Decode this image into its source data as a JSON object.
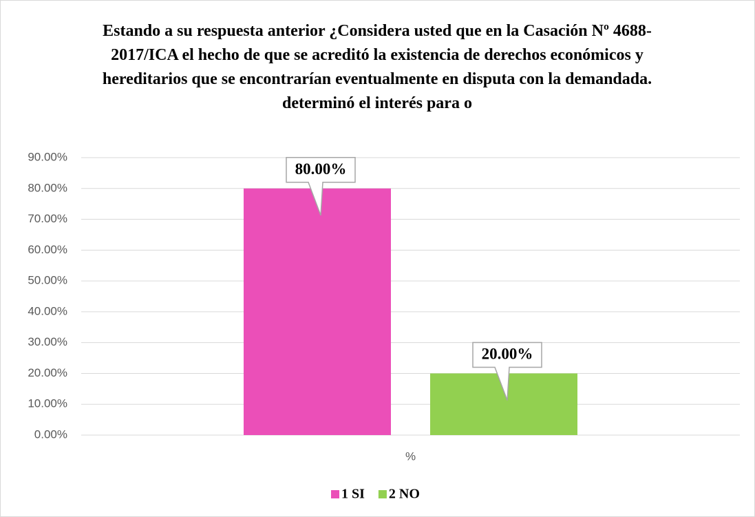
{
  "chart_data": {
    "type": "bar",
    "title": "Estando a su respuesta anterior ¿Considera usted que en la Casación Nº 4688-2017/ICA el hecho de que se acreditó la existencia de derechos económicos y hereditarios que se encontrarían eventualmente en disputa con la demandada. determinó el interés para o",
    "categories": [
      "%"
    ],
    "series": [
      {
        "name": "1 SI",
        "color": "#eb4fb8",
        "values": [
          80
        ],
        "value_labels": [
          "80.00%"
        ]
      },
      {
        "name": "2 NO",
        "color": "#92d050",
        "values": [
          20
        ],
        "value_labels": [
          "20.00%"
        ]
      }
    ],
    "ylim": [
      0,
      90
    ],
    "yticks": [
      {
        "value": 0,
        "label": "0.00%"
      },
      {
        "value": 10,
        "label": "10.00%"
      },
      {
        "value": 20,
        "label": "20.00%"
      },
      {
        "value": 30,
        "label": "30.00%"
      },
      {
        "value": 40,
        "label": "40.00%"
      },
      {
        "value": 50,
        "label": "50.00%"
      },
      {
        "value": 60,
        "label": "60.00%"
      },
      {
        "value": 70,
        "label": "70.00%"
      },
      {
        "value": 80,
        "label": "80.00%"
      },
      {
        "value": 90,
        "label": "90.00%"
      }
    ],
    "grid": true,
    "legend": "bottom"
  }
}
